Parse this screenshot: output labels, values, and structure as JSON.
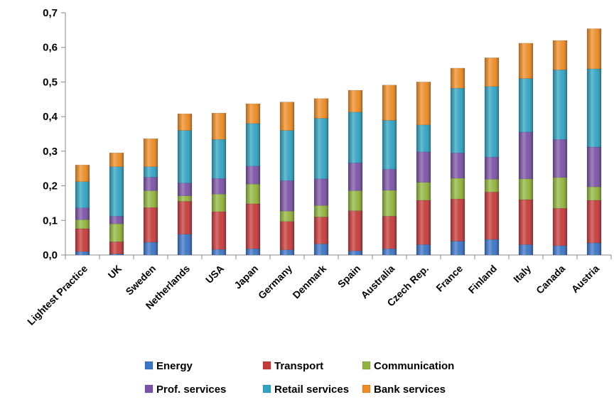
{
  "chart_data": {
    "type": "bar",
    "stacked": true,
    "title": "",
    "xlabel": "",
    "ylabel": "",
    "ylim": [
      0,
      0.7
    ],
    "ytick_labels": [
      "0,0",
      "0,1",
      "0,2",
      "0,3",
      "0,4",
      "0,5",
      "0,6",
      "0,7"
    ],
    "grid": false,
    "legend_position": "bottom",
    "categories": [
      "Lightest Practice",
      "UK",
      "Sweden",
      "Netherlands",
      "USA",
      "Japan",
      "Germany",
      "Denmark",
      "Spain",
      "Australia",
      "Czech Rep.",
      "France",
      "Finland",
      "Italy",
      "Canada",
      "Austria"
    ],
    "series": [
      {
        "name": "Energy",
        "color": "#3a74c6",
        "values": [
          0.01,
          0.003,
          0.037,
          0.06,
          0.016,
          0.018,
          0.015,
          0.032,
          0.012,
          0.018,
          0.03,
          0.04,
          0.045,
          0.03,
          0.027,
          0.035
        ]
      },
      {
        "name": "Transport",
        "color": "#c63a3a",
        "values": [
          0.066,
          0.035,
          0.1,
          0.095,
          0.109,
          0.13,
          0.082,
          0.078,
          0.116,
          0.094,
          0.128,
          0.122,
          0.137,
          0.13,
          0.108,
          0.123
        ]
      },
      {
        "name": "Communication",
        "color": "#92b43e",
        "values": [
          0.026,
          0.052,
          0.049,
          0.016,
          0.051,
          0.057,
          0.03,
          0.033,
          0.058,
          0.075,
          0.052,
          0.06,
          0.037,
          0.06,
          0.089,
          0.039
        ]
      },
      {
        "name": "Prof. services",
        "color": "#7a52a6",
        "values": [
          0.034,
          0.022,
          0.039,
          0.037,
          0.045,
          0.052,
          0.088,
          0.077,
          0.08,
          0.061,
          0.088,
          0.073,
          0.064,
          0.135,
          0.11,
          0.115
        ]
      },
      {
        "name": "Retail services",
        "color": "#2fa3c2",
        "values": [
          0.076,
          0.143,
          0.03,
          0.152,
          0.113,
          0.123,
          0.145,
          0.175,
          0.147,
          0.141,
          0.078,
          0.187,
          0.204,
          0.155,
          0.201,
          0.226
        ]
      },
      {
        "name": "Bank services",
        "color": "#f08c24",
        "values": [
          0.048,
          0.04,
          0.081,
          0.048,
          0.076,
          0.057,
          0.082,
          0.057,
          0.063,
          0.102,
          0.124,
          0.058,
          0.083,
          0.102,
          0.085,
          0.116
        ]
      }
    ]
  }
}
